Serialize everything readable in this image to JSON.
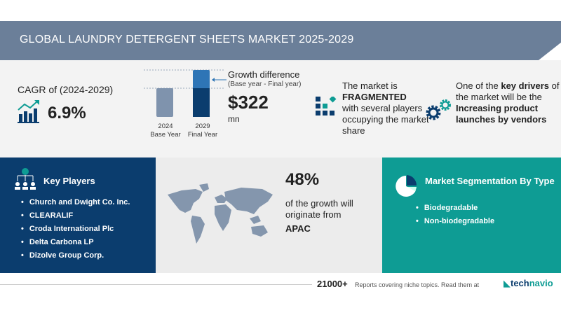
{
  "header": {
    "title": "GLOBAL LAUNDRY DETERGENT SHEETS MARKET 2025-2029"
  },
  "cagr": {
    "label": "CAGR of (2024-2029)",
    "value": "6.9%",
    "icon": "growth-chart-icon"
  },
  "growth_chart": {
    "bars": [
      {
        "year": "2024",
        "label": "Base Year"
      },
      {
        "year": "2029",
        "label": "Final Year"
      }
    ],
    "title": "Growth difference",
    "subtitle": "(Base year - Final year)",
    "amount": "$322",
    "unit": "mn"
  },
  "fragmented": {
    "line1": "The market is",
    "bold": "FRAGMENTED",
    "line2": "with several players occupying the market share",
    "icon": "blocks-icon"
  },
  "drivers": {
    "pre": "One of the",
    "bold1": "key drivers",
    "mid": "of the market will be the",
    "bold2": "Increasing product launches by vendors",
    "icon": "gears-icon"
  },
  "key_players": {
    "title": "Key Players",
    "items": [
      "Church and Dwight Co. Inc.",
      "CLEARALIF",
      "Croda International Plc",
      "Delta Carbona LP",
      "Dizolve Group Corp."
    ]
  },
  "region": {
    "percent": "48%",
    "text": "of the growth will originate from",
    "region": "APAC"
  },
  "segmentation": {
    "title": "Market Segmentation By Type",
    "items": [
      "Biodegradable",
      "Non-biodegradable"
    ]
  },
  "footer": {
    "count": "21000+",
    "text": "Reports covering niche topics. Read them at",
    "brand_a": "tech",
    "brand_b": "navio"
  },
  "colors": {
    "header": "#6b7f99",
    "navy": "#0b3d6e",
    "teal": "#0e9c94",
    "bar_base": "#7f93ad",
    "bar_top": "#2e75b6"
  }
}
